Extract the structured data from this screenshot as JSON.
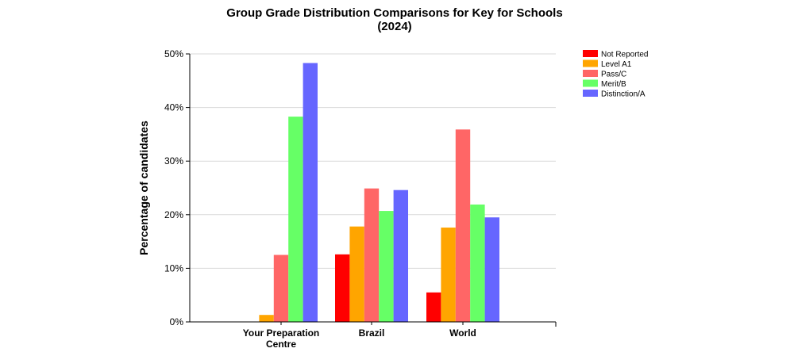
{
  "chart_data": {
    "type": "bar",
    "title_lines": [
      "Group Grade Distribution Comparisons for Key for Schools",
      "(2024)"
    ],
    "ylabel": "Percentage of candidates",
    "ylim": [
      0,
      50
    ],
    "y_ticks": [
      "0%",
      "10%",
      "20%",
      "30%",
      "40%",
      "50%"
    ],
    "categories": [
      {
        "lines": [
          "Your Preparation",
          "Centre"
        ]
      },
      {
        "lines": [
          "Brazil"
        ]
      },
      {
        "lines": [
          "World"
        ]
      }
    ],
    "series": [
      {
        "name": "Not Reported",
        "color": "#ff0000",
        "values": [
          0,
          12.6,
          5.5
        ]
      },
      {
        "name": "Level A1",
        "color": "#ffa500",
        "values": [
          1.3,
          17.8,
          17.6
        ]
      },
      {
        "name": "Pass/C",
        "color": "#ff6666",
        "values": [
          12.5,
          24.9,
          35.9
        ]
      },
      {
        "name": "Merit/B",
        "color": "#66ff66",
        "values": [
          38.3,
          20.7,
          21.9
        ]
      },
      {
        "name": "Distinction/A",
        "color": "#6666ff",
        "values": [
          48.3,
          24.6,
          19.5
        ]
      }
    ],
    "grid": true,
    "legend_position": "top-right"
  }
}
